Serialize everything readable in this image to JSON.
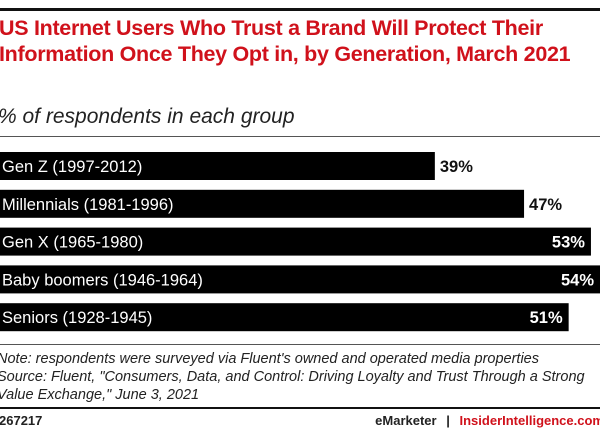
{
  "chart_data": {
    "type": "bar",
    "orientation": "horizontal",
    "title": "US Internet Users Who Trust a Brand Will Protect Their Information Once They Opt in, by Generation, March 2021",
    "subtitle": "% of respondents in each group",
    "categories": [
      "Gen Z (1997-2012)",
      "Millennials (1981-1996)",
      "Gen X (1965-1980)",
      "Baby boomers (1946-1964)",
      "Seniors (1928-1945)"
    ],
    "values": [
      39,
      47,
      53,
      54,
      51
    ],
    "data_labels": [
      "39%",
      "47%",
      "53%",
      "54%",
      "51%"
    ],
    "xlim": [
      0,
      54
    ],
    "grid": false,
    "bar_color": "#000000"
  },
  "footer": {
    "note": "Note: respondents were surveyed via Fluent's owned and operated media properties",
    "source": "Source: Fluent, \"Consumers, Data, and Control: Driving Loyalty and Trust Through a Strong Value Exchange,\" June 3, 2021",
    "chart_id": "267217",
    "brand_left": "eMarketer",
    "separator": "|",
    "brand_right": "InsiderIntelligence.com"
  },
  "colors": {
    "title": "#d0111b",
    "bar": "#000000"
  }
}
